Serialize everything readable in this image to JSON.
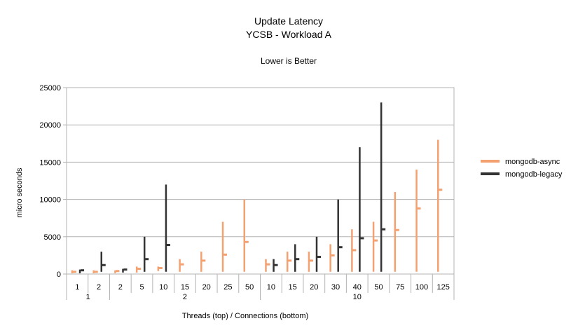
{
  "chart_data": {
    "type": "bar",
    "title": "Update Latency",
    "title_line2": "YCSB - Workload A",
    "subtitle": "Lower is Better",
    "xlabel": "Threads (top)  / Connections (bottom)",
    "ylabel": "micro seconds",
    "ylim": [
      0,
      25000
    ],
    "yticks": [
      0,
      5000,
      10000,
      15000,
      20000,
      25000
    ],
    "grid": true,
    "legend_position": "right",
    "categories": [
      "1",
      "2",
      "2",
      "5",
      "10",
      "15",
      "20",
      "25",
      "50",
      "10",
      "15",
      "20",
      "30",
      "40",
      "50",
      "75",
      "100",
      "125"
    ],
    "groups": [
      {
        "label": "1",
        "size": 2
      },
      {
        "label": "2",
        "size": 7
      },
      {
        "label": "10",
        "size": 9
      }
    ],
    "series": [
      {
        "name": "mongodb-async",
        "color": "#f4a171",
        "high": [
          500,
          500,
          500,
          1000,
          1000,
          2000,
          3000,
          7000,
          10000,
          2000,
          3000,
          3000,
          4000,
          6000,
          7000,
          11000,
          14000,
          18000
        ],
        "low": [
          100,
          100,
          100,
          200,
          400,
          300,
          300,
          300,
          300,
          300,
          300,
          300,
          300,
          300,
          300,
          300,
          300,
          300
        ],
        "mean": [
          300,
          300,
          400,
          700,
          800,
          1300,
          1800,
          2600,
          4300,
          1300,
          1800,
          1800,
          2500,
          3200,
          4500,
          5900,
          8800,
          11300
        ]
      },
      {
        "name": "mongodb-legacy",
        "color": "#333333",
        "high": [
          600,
          3000,
          700,
          5000,
          12000,
          null,
          null,
          null,
          null,
          2000,
          4000,
          5000,
          10000,
          17000,
          23000,
          null,
          null,
          null
        ],
        "low": [
          100,
          300,
          200,
          300,
          300,
          null,
          null,
          null,
          null,
          300,
          300,
          300,
          300,
          300,
          300,
          null,
          null,
          null
        ],
        "mean": [
          500,
          1200,
          600,
          2000,
          3900,
          null,
          null,
          null,
          null,
          1200,
          2000,
          2300,
          3600,
          4800,
          6000,
          null,
          null,
          null
        ]
      }
    ]
  }
}
